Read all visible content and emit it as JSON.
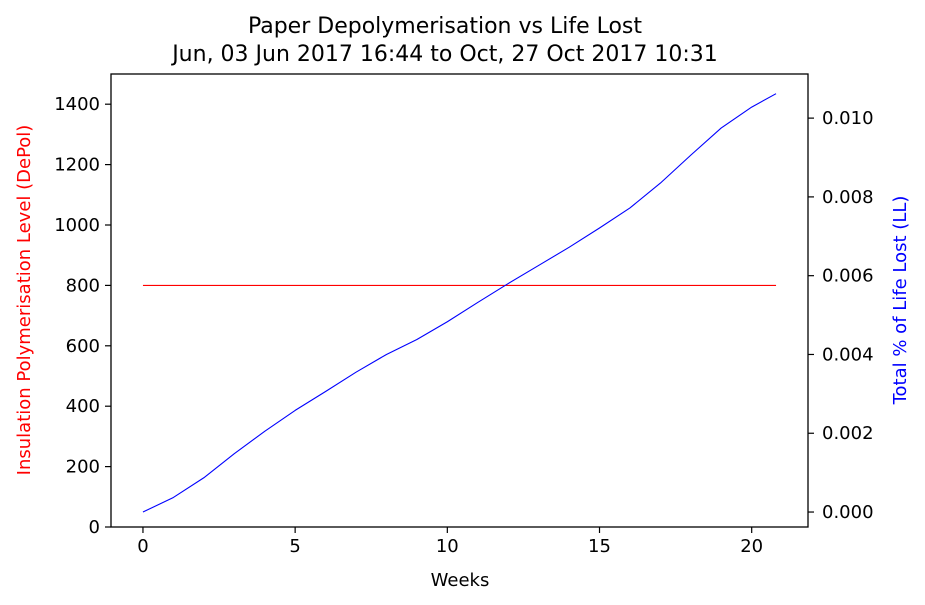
{
  "chart_data": {
    "type": "line",
    "title": [
      "Paper Depolymerisation vs Life Lost",
      "Jun, 03 Jun 2017 16:44 to Oct, 27 Oct 2017 10:31"
    ],
    "xlabel": "Weeks",
    "ylabel_left": "Insulation Polymerisation Level (DePol)",
    "ylabel_right": "Total % of Life Lost (LL)",
    "colors": {
      "left": "#ff0000",
      "right": "#0000ff",
      "axis": "#000000"
    },
    "xlim": [
      -1.05,
      21.85
    ],
    "ylim_left": [
      0,
      1500
    ],
    "ylim_right": [
      -0.00038,
      0.01112
    ],
    "x_ticks": [
      0,
      5,
      10,
      15,
      20
    ],
    "x_tick_labels": [
      "0",
      "5",
      "10",
      "15",
      "20"
    ],
    "y_left_ticks": [
      0,
      200,
      400,
      600,
      800,
      1000,
      1200,
      1400
    ],
    "y_left_tick_labels": [
      "0",
      "200",
      "400",
      "600",
      "800",
      "1000",
      "1200",
      "1400"
    ],
    "y_right_ticks": [
      0,
      0.002,
      0.004,
      0.006,
      0.008,
      0.01
    ],
    "y_right_tick_labels": [
      "0.000",
      "0.002",
      "0.004",
      "0.006",
      "0.008",
      "0.010"
    ],
    "series": [
      {
        "name": "Insulation Polymerisation Level (DePol)",
        "axis": "left",
        "x": [
          0,
          20.8
        ],
        "y": [
          800,
          800
        ]
      },
      {
        "name": "Total % of Life Lost (LL)",
        "axis": "right",
        "x": [
          0,
          1,
          2,
          3,
          4,
          5,
          6,
          7,
          8,
          9,
          10,
          11,
          12,
          13,
          14,
          15,
          16,
          17,
          18,
          19,
          20,
          20.8
        ],
        "y": [
          0,
          0.00037,
          0.00087,
          0.00148,
          0.00205,
          0.00258,
          0.00306,
          0.00355,
          0.004,
          0.00438,
          0.00483,
          0.00532,
          0.0058,
          0.00626,
          0.00672,
          0.00721,
          0.00772,
          0.00835,
          0.00906,
          0.00975,
          0.01028,
          0.01062
        ]
      }
    ]
  }
}
